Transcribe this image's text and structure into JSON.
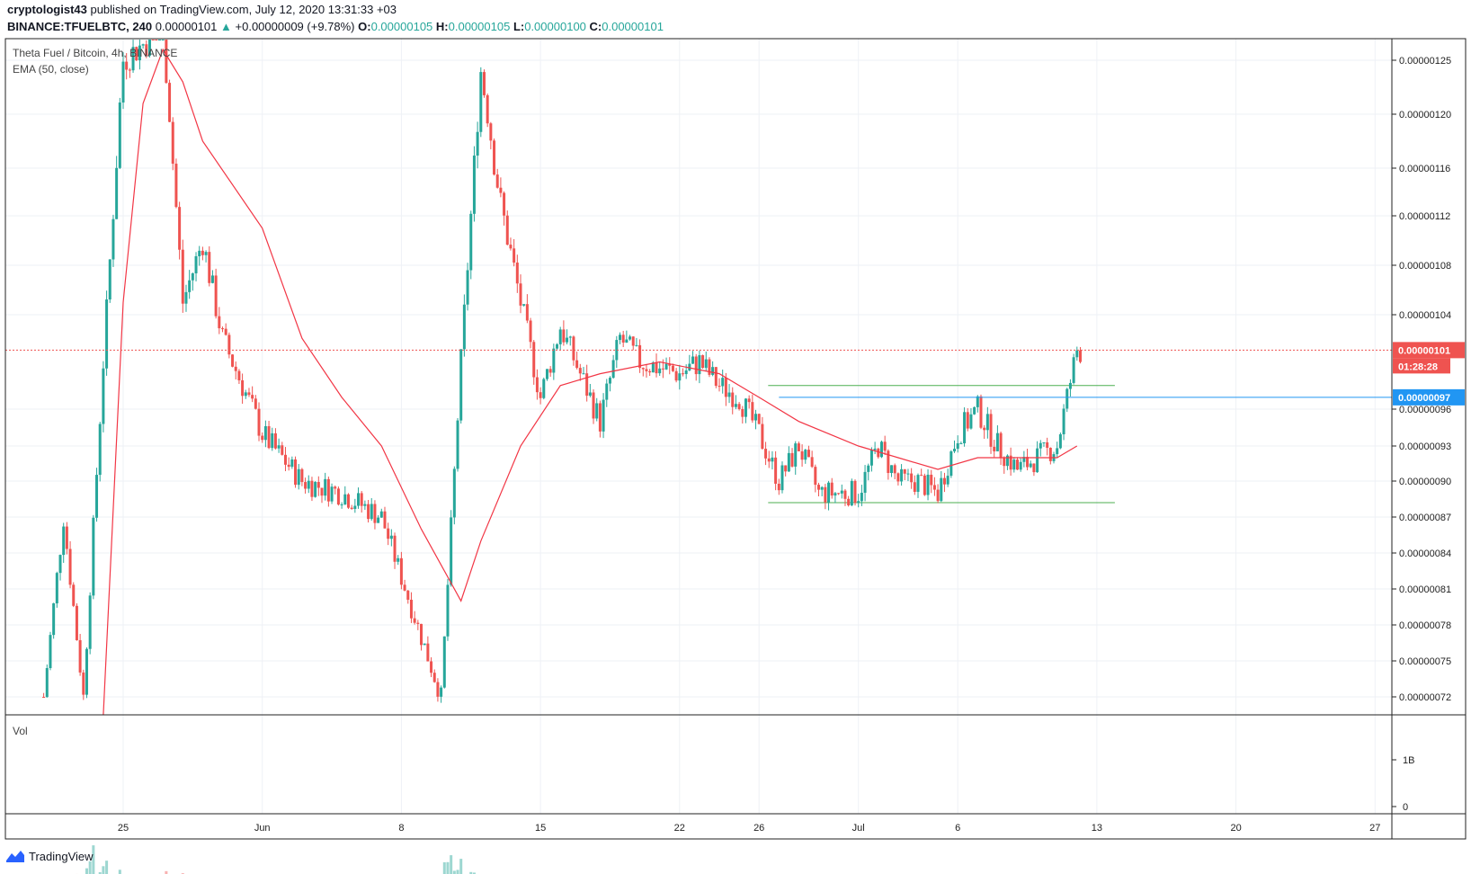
{
  "header": {
    "line1_user": "cryptologist43",
    "line1_rest": " published on TradingView.com, July 12, 2020 13:31:33 +03",
    "symbol": "BINANCE:TFUELBTC, 240",
    "last": "0.00000101",
    "change": "+0.00000009 (+9.78%)",
    "o_label": "O:",
    "o": "0.00000105",
    "h_label": "H:",
    "h": "0.00000105",
    "l_label": "L:",
    "l": "0.00000100",
    "c_label": "C:",
    "c": "0.00000101"
  },
  "legend": {
    "title": "Theta Fuel / Bitcoin, 4h, BINANCE",
    "ema": "EMA (50, close)",
    "vol": "Vol"
  },
  "price_axis": {
    "ticks": [
      "0.00000125",
      "0.00000120",
      "0.00000116",
      "0.00000112",
      "0.00000108",
      "0.00000104",
      "0.00000096",
      "0.00000093",
      "0.00000090",
      "0.00000087",
      "0.00000084",
      "0.00000081",
      "0.00000078",
      "0.00000075",
      "0.00000072"
    ],
    "current_label": "0.00000101",
    "countdown": "01:28:28",
    "hline_label": "0.00000097"
  },
  "volume_axis": {
    "ticks": [
      "1B",
      "0"
    ]
  },
  "time_axis": {
    "ticks": [
      "25",
      "Jun",
      "8",
      "15",
      "22",
      "26",
      "Jul",
      "6",
      "13",
      "20",
      "27"
    ]
  },
  "colors": {
    "up": "#26a69a",
    "down": "#ef5350",
    "ema": "#f23645",
    "blue_line": "#2196f3",
    "box": "#4caf50"
  },
  "chart_data": {
    "type": "candlestick",
    "title": "Theta Fuel / Bitcoin, 4h, BINANCE",
    "series": [
      {
        "name": "EMA (50, close)"
      },
      {
        "name": "Vol"
      }
    ],
    "ylim": [
      7e-07,
      1.28e-06
    ],
    "current_price": 1.01e-06,
    "horizontal_line": 9.7e-07,
    "range_box": {
      "top": 9.8e-07,
      "bottom": 8.82e-07,
      "start": "Jun 27",
      "end": "Jul 13"
    },
    "close_path": [
      [
        "May 21",
        7.2e-07
      ],
      [
        "May 22",
        8.7e-07
      ],
      [
        "May 23",
        7.2e-07
      ],
      [
        "May 24",
        1e-06
      ],
      [
        "May 25",
        1.25e-06
      ],
      [
        "May 27",
        1.28e-06
      ],
      [
        "May 28",
        1.05e-06
      ],
      [
        "May 29",
        1.1e-06
      ],
      [
        "May 30",
        1.02e-06
      ],
      [
        "Jun 1",
        9.4e-07
      ],
      [
        "Jun 3",
        9e-07
      ],
      [
        "Jun 5",
        8.9e-07
      ],
      [
        "Jun 7",
        8.7e-07
      ],
      [
        "Jun 8",
        8.2e-07
      ],
      [
        "Jun 9",
        7.7e-07
      ],
      [
        "Jun 10",
        7.2e-07
      ],
      [
        "Jun 11",
        1e-06
      ],
      [
        "Jun 12",
        1.24e-06
      ],
      [
        "Jun 13",
        1.13e-06
      ],
      [
        "Jun 14",
        1.05e-06
      ],
      [
        "Jun 15",
        9.7e-07
      ],
      [
        "Jun 16",
        1.03e-06
      ],
      [
        "Jun 17",
        9.9e-07
      ],
      [
        "Jun 18",
        9.5e-07
      ],
      [
        "Jun 19",
        1.02e-06
      ],
      [
        "Jun 20",
        1e-06
      ],
      [
        "Jun 22",
        9.9e-07
      ],
      [
        "Jun 23",
        1e-06
      ],
      [
        "Jun 24",
        9.8e-07
      ],
      [
        "Jun 25",
        9.7e-07
      ],
      [
        "Jun 26",
        9.4e-07
      ],
      [
        "Jun 27",
        9e-07
      ],
      [
        "Jun 28",
        9.3e-07
      ],
      [
        "Jun 29",
        8.9e-07
      ],
      [
        "Jul 1",
        8.9e-07
      ],
      [
        "Jul 2",
        9.3e-07
      ],
      [
        "Jul 3",
        9e-07
      ],
      [
        "Jul 4",
        9e-07
      ],
      [
        "Jul 5",
        8.9e-07
      ],
      [
        "Jul 6",
        9.4e-07
      ],
      [
        "Jul 7",
        9.6e-07
      ],
      [
        "Jul 8",
        9.3e-07
      ],
      [
        "Jul 9",
        9.1e-07
      ],
      [
        "Jul 10",
        9.2e-07
      ],
      [
        "Jul 11",
        9.3e-07
      ],
      [
        "Jul 12",
        1.01e-06
      ]
    ],
    "ema_path": [
      [
        "May 24",
        6.5e-07
      ],
      [
        "May 25",
        1.05e-06
      ],
      [
        "May 26",
        1.21e-06
      ],
      [
        "May 27",
        1.26e-06
      ],
      [
        "May 28",
        1.23e-06
      ],
      [
        "May 29",
        1.18e-06
      ],
      [
        "Jun 1",
        1.11e-06
      ],
      [
        "Jun 3",
        1.02e-06
      ],
      [
        "Jun 5",
        9.7e-07
      ],
      [
        "Jun 7",
        9.3e-07
      ],
      [
        "Jun 9",
        8.6e-07
      ],
      [
        "Jun 11",
        8e-07
      ],
      [
        "Jun 12",
        8.5e-07
      ],
      [
        "Jun 14",
        9.3e-07
      ],
      [
        "Jun 16",
        9.8e-07
      ],
      [
        "Jun 18",
        9.9e-07
      ],
      [
        "Jun 21",
        1e-06
      ],
      [
        "Jun 24",
        9.9e-07
      ],
      [
        "Jun 26",
        9.7e-07
      ],
      [
        "Jun 28",
        9.5e-07
      ],
      [
        "Jul 1",
        9.3e-07
      ],
      [
        "Jul 3",
        9.2e-07
      ],
      [
        "Jul 5",
        9.1e-07
      ],
      [
        "Jul 7",
        9.2e-07
      ],
      [
        "Jul 9",
        9.2e-07
      ],
      [
        "Jul 11",
        9.2e-07
      ],
      [
        "Jul 12",
        9.3e-07
      ]
    ]
  }
}
